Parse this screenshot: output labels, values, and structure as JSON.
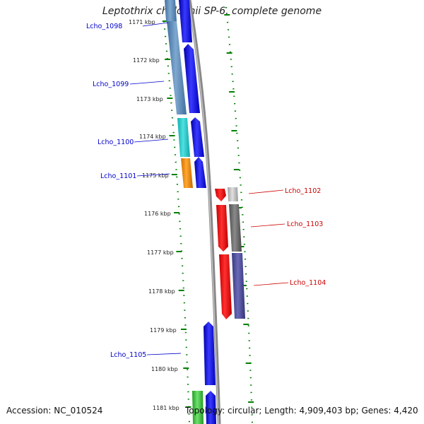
{
  "title": "Leptothrix cholodnii SP-6, complete genome",
  "accession": "Accession: NC_010524",
  "topology": "Topology: circular; Length: 4,909,403 bp; Genes: 4,420",
  "ticks": [
    "1171 kbp",
    "1172 kbp",
    "1173 kbp",
    "1174 kbp",
    "1175 kbp",
    "1176 kbp",
    "1177 kbp",
    "1178 kbp",
    "1179 kbp",
    "1180 kbp",
    "1181 kbp"
  ],
  "genes": [
    {
      "name": "Lcho_1098",
      "strand": "minus",
      "color": "#0000cc"
    },
    {
      "name": "Lcho_1099",
      "strand": "minus",
      "color": "#0000cc"
    },
    {
      "name": "Lcho_1100",
      "strand": "minus",
      "color": "#0000cc"
    },
    {
      "name": "Lcho_1101",
      "strand": "minus",
      "color": "#0000cc"
    },
    {
      "name": "Lcho_1102",
      "strand": "plus",
      "color": "#cc0000"
    },
    {
      "name": "Lcho_1103",
      "strand": "plus",
      "color": "#cc0000"
    },
    {
      "name": "Lcho_1104",
      "strand": "plus",
      "color": "#cc0000"
    },
    {
      "name": "Lcho_1105",
      "strand": "minus",
      "color": "#0000cc"
    }
  ],
  "colors": {
    "backbone": "#888888",
    "ticks": "#008000",
    "minus_label": "#0000cc",
    "plus_label": "#cc0000"
  }
}
